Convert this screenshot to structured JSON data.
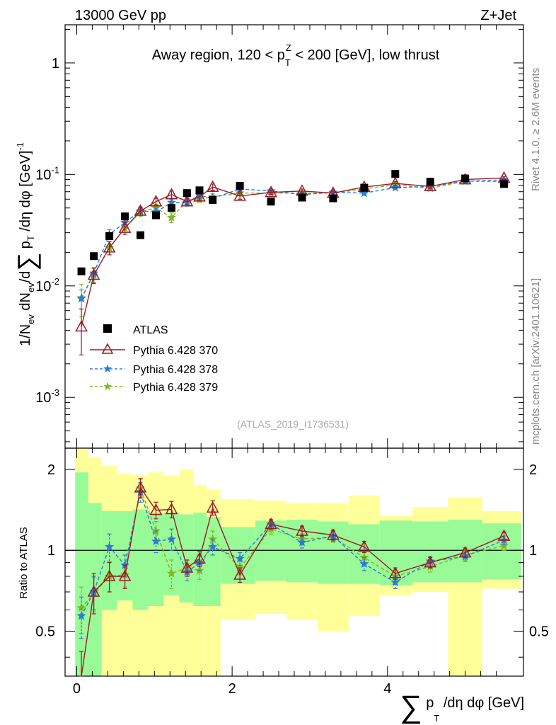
{
  "header": {
    "left": "13000 GeV pp",
    "right": "Z+Jet"
  },
  "side_labels": {
    "rivet": "Rivet 4.1.0, ≥ 2.6M events",
    "source": "mcplots.cern.ch [arXiv:2401.10621]"
  },
  "chart_data": [
    {
      "type": "line",
      "panel": "main",
      "title": "Away region, 120 < p_T^Z < 200 [GeV], low thrust",
      "analysis_tag": "(ATLAS_2019_I1736531)",
      "xlabel": "∑ p_T /dη dφ [GeV]",
      "ylabel": "1/N_ev dN_ev/d∑ p_T /dη dφ [GeV]^-1",
      "yscale": "log",
      "xlim": [
        -0.15,
        5.75
      ],
      "ylim": [
        0.00035,
        2.2
      ],
      "x_ticks": [
        0,
        2,
        4
      ],
      "y_ticks": [
        0.001,
        0.01,
        0.1,
        1
      ],
      "y_tick_labels": [
        "10^-3",
        "10^-2",
        "10^-1",
        "1"
      ],
      "legend_position": "lower-left",
      "series": [
        {
          "name": "ATLAS",
          "style": "markers",
          "color": "#000000",
          "x": [
            0.06,
            0.22,
            0.42,
            0.62,
            0.82,
            1.02,
            1.22,
            1.42,
            1.58,
            1.75,
            2.1,
            2.5,
            2.9,
            3.3,
            3.7,
            4.1,
            4.55,
            5.0,
            5.5
          ],
          "y": [
            0.0135,
            0.0185,
            0.028,
            0.042,
            0.0285,
            0.043,
            0.05,
            0.068,
            0.072,
            0.059,
            0.079,
            0.057,
            0.062,
            0.061,
            0.076,
            0.101,
            0.086,
            0.092,
            0.082
          ]
        },
        {
          "name": "Pythia 6.428 370",
          "style": "solid-triangle",
          "color": "#9a1b24",
          "x": [
            0.06,
            0.22,
            0.42,
            0.62,
            0.82,
            1.02,
            1.22,
            1.42,
            1.58,
            1.75,
            2.1,
            2.5,
            2.9,
            3.3,
            3.7,
            4.1,
            4.55,
            5.0,
            5.5
          ],
          "y": [
            0.0043,
            0.0125,
            0.022,
            0.033,
            0.047,
            0.057,
            0.066,
            0.057,
            0.063,
            0.077,
            0.064,
            0.069,
            0.071,
            0.068,
            0.077,
            0.083,
            0.078,
            0.09,
            0.093
          ],
          "yerr": [
            0.0019,
            0.002,
            0.003,
            0.004,
            0.004,
            0.004,
            0.005,
            0.004,
            0.004,
            0.005,
            0.004,
            0.003,
            0.003,
            0.003,
            0.003,
            0.003,
            0.003,
            0.003,
            0.003
          ]
        },
        {
          "name": "Pythia 6.428 378",
          "style": "dashed-star",
          "color": "#2f7ad6",
          "x": [
            0.06,
            0.22,
            0.42,
            0.62,
            0.82,
            1.02,
            1.22,
            1.42,
            1.58,
            1.75,
            2.1,
            2.5,
            2.9,
            3.3,
            3.7,
            4.1,
            4.55,
            5.0,
            5.5
          ],
          "y": [
            0.0077,
            0.013,
            0.029,
            0.037,
            0.047,
            0.046,
            0.056,
            0.056,
            0.065,
            0.061,
            0.074,
            0.071,
            0.066,
            0.069,
            0.068,
            0.076,
            0.078,
            0.087,
            0.089
          ],
          "yerr": [
            0.0015,
            0.0015,
            0.003,
            0.003,
            0.004,
            0.004,
            0.004,
            0.004,
            0.004,
            0.004,
            0.003,
            0.003,
            0.003,
            0.003,
            0.003,
            0.003,
            0.003,
            0.003,
            0.003
          ]
        },
        {
          "name": "Pythia 6.428 379",
          "style": "dashed-star",
          "color": "#82b81f",
          "x": [
            0.06,
            0.22,
            0.42,
            0.62,
            0.82,
            1.02,
            1.22,
            1.42,
            1.58,
            1.75,
            2.1,
            2.5,
            2.9,
            3.3,
            3.7,
            4.1,
            4.55,
            5.0,
            5.5
          ],
          "y": [
            0.0078,
            0.0125,
            0.022,
            0.033,
            0.046,
            0.05,
            0.041,
            0.058,
            0.06,
            0.063,
            0.068,
            0.068,
            0.068,
            0.068,
            0.074,
            0.081,
            0.075,
            0.087,
            0.086
          ],
          "yerr": [
            0.0025,
            0.0018,
            0.003,
            0.004,
            0.004,
            0.004,
            0.004,
            0.004,
            0.004,
            0.004,
            0.003,
            0.003,
            0.003,
            0.003,
            0.003,
            0.003,
            0.003,
            0.003,
            0.003
          ]
        }
      ]
    },
    {
      "type": "line",
      "panel": "ratio",
      "ylabel": "Ratio to ATLAS",
      "xlabel": "∑ p_T /dη dφ [GeV]",
      "yscale": "log",
      "xlim": [
        -0.15,
        5.75
      ],
      "ylim": [
        0.34,
        2.4
      ],
      "y_ticks": [
        0.5,
        1,
        2
      ],
      "reference_line": 1,
      "bin_edges": [
        -0.02,
        0.15,
        0.32,
        0.52,
        0.72,
        0.92,
        1.12,
        1.32,
        1.5,
        1.67,
        1.85,
        2.3,
        2.7,
        3.1,
        3.5,
        3.9,
        4.32,
        4.78,
        5.22,
        5.72
      ],
      "band_inner": {
        "name": "ATLAS stat. uncertainty",
        "color": "#98fb98",
        "lo": [
          0.34,
          0.34,
          0.6,
          0.65,
          0.6,
          0.62,
          0.68,
          0.64,
          0.62,
          0.62,
          0.75,
          0.77,
          0.76,
          0.75,
          0.75,
          0.74,
          0.76,
          0.76,
          0.78
        ],
        "hi": [
          1.95,
          1.5,
          1.4,
          1.4,
          1.42,
          1.38,
          1.38,
          1.36,
          1.38,
          1.33,
          1.22,
          1.29,
          1.3,
          1.28,
          1.25,
          1.29,
          1.28,
          1.3,
          1.26
        ]
      },
      "band_outer": {
        "name": "ATLAS total uncertainty",
        "color": "#ffff99",
        "lo": [
          0.34,
          0.34,
          0.34,
          0.34,
          0.34,
          0.34,
          0.34,
          0.34,
          0.34,
          0.34,
          0.55,
          0.58,
          0.55,
          0.5,
          0.57,
          0.68,
          0.7,
          0.34,
          0.72
        ],
        "hi": [
          2.4,
          2.22,
          2.06,
          1.93,
          1.9,
          1.95,
          1.9,
          2.0,
          1.75,
          1.68,
          1.55,
          1.53,
          1.5,
          1.5,
          1.6,
          1.34,
          1.45,
          1.57,
          1.4
        ]
      },
      "series": [
        {
          "name": "Pythia 6.428 370",
          "color": "#9a1b24",
          "y": [
            0.32,
            0.7,
            0.8,
            0.8,
            1.71,
            1.41,
            1.42,
            0.86,
            0.93,
            1.44,
            0.81,
            1.25,
            1.18,
            1.14,
            1.03,
            0.82,
            0.9,
            0.98,
            1.13
          ],
          "yerr": [
            0.1,
            0.12,
            0.1,
            0.08,
            0.14,
            0.1,
            0.1,
            0.06,
            0.06,
            0.09,
            0.05,
            0.05,
            0.05,
            0.05,
            0.05,
            0.04,
            0.04,
            0.04,
            0.04
          ]
        },
        {
          "name": "Pythia 6.428 378",
          "color": "#2f7ad6",
          "y": [
            0.57,
            0.7,
            1.03,
            0.88,
            1.65,
            1.08,
            1.1,
            0.83,
            0.9,
            1.03,
            0.93,
            1.25,
            1.07,
            1.13,
            0.89,
            0.76,
            0.91,
            0.95,
            1.09
          ],
          "yerr": [
            0.1,
            0.1,
            0.12,
            0.08,
            0.14,
            0.1,
            0.1,
            0.06,
            0.06,
            0.07,
            0.05,
            0.05,
            0.05,
            0.05,
            0.05,
            0.04,
            0.04,
            0.04,
            0.04
          ]
        },
        {
          "name": "Pythia 6.428 379",
          "color": "#82b81f",
          "y": [
            0.61,
            0.69,
            0.8,
            0.81,
            1.7,
            1.18,
            0.82,
            0.86,
            0.84,
            1.1,
            0.86,
            1.2,
            1.1,
            1.12,
            0.94,
            0.8,
            0.87,
            0.96,
            1.04
          ],
          "yerr": [
            0.12,
            0.1,
            0.1,
            0.08,
            0.14,
            0.1,
            0.1,
            0.06,
            0.06,
            0.08,
            0.05,
            0.05,
            0.05,
            0.05,
            0.05,
            0.04,
            0.04,
            0.04,
            0.04
          ]
        }
      ]
    }
  ]
}
